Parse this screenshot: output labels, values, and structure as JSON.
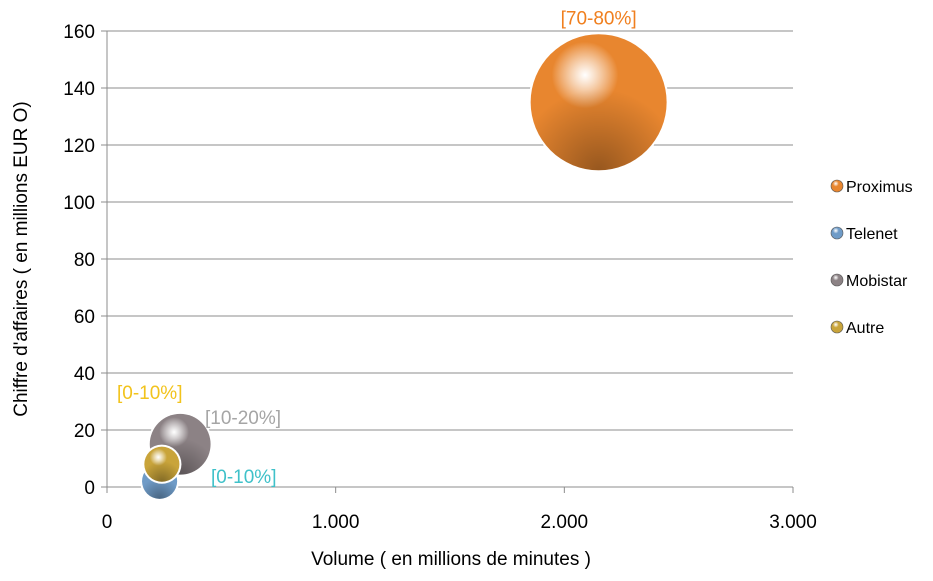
{
  "chart_data": {
    "type": "bubble",
    "xlabel": "Volume ( en millions de minutes )",
    "ylabel": "Chiffre d'affaires ( en millions  EUR O)",
    "xlim": [
      0,
      3000
    ],
    "ylim": [
      0,
      160
    ],
    "x_ticks": [
      "0",
      "1.000",
      "2.000",
      "3.000"
    ],
    "y_ticks": [
      "0",
      "20",
      "40",
      "60",
      "80",
      "100",
      "120",
      "140",
      "160"
    ],
    "grid": "horizontal",
    "legend_position": "right",
    "series": [
      {
        "name": "Proximus",
        "x": 2150,
        "y": 135,
        "size": 75,
        "label": "[70-80%]",
        "color": "#E8862F",
        "label_color": "#F07F1E"
      },
      {
        "name": "Telenet",
        "x": 230,
        "y": 2,
        "size": 5,
        "label": "[0-10%]",
        "color": "#6F9BC7",
        "label_color": "#3FC1C9"
      },
      {
        "name": "Mobistar",
        "x": 320,
        "y": 15,
        "size": 15,
        "label": "[10-20%]",
        "color": "#8C8285",
        "label_color": "#A5A5A5"
      },
      {
        "name": "Autre",
        "x": 240,
        "y": 8,
        "size": 5,
        "label": "[0-10%]",
        "color": "#C9A43A",
        "label_color": "#F2C31C"
      }
    ]
  }
}
